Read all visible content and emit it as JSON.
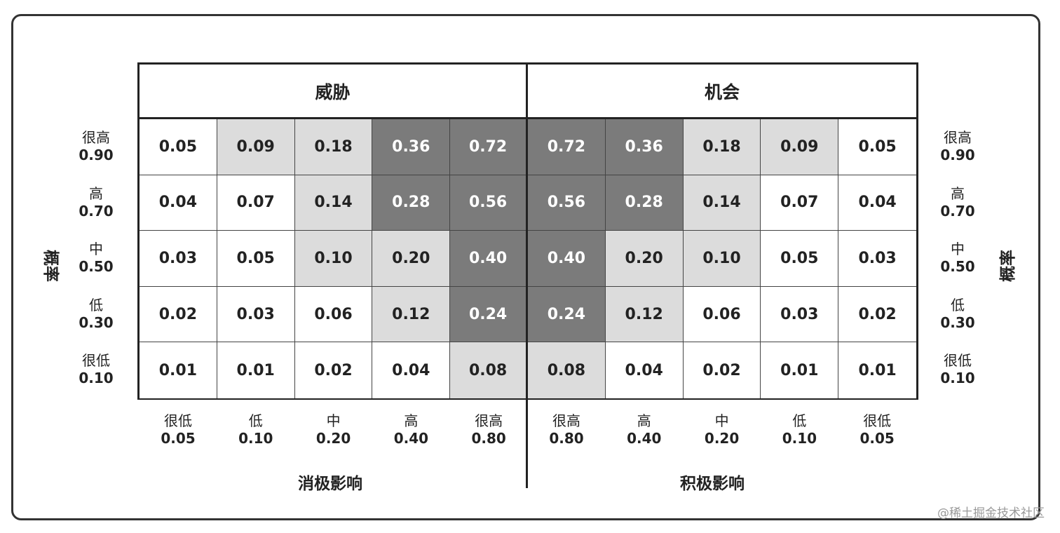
{
  "headers": {
    "threat": "威胁",
    "opportunity": "机会"
  },
  "probability_label": "概率",
  "probability_levels": [
    {
      "name": "很高",
      "value": "0.90"
    },
    {
      "name": "高",
      "value": "0.70"
    },
    {
      "name": "中",
      "value": "0.50"
    },
    {
      "name": "低",
      "value": "0.30"
    },
    {
      "name": "很低",
      "value": "0.10"
    }
  ],
  "impact_levels": [
    {
      "name": "很低",
      "value": "0.05"
    },
    {
      "name": "低",
      "value": "0.10"
    },
    {
      "name": "中",
      "value": "0.20"
    },
    {
      "name": "高",
      "value": "0.40"
    },
    {
      "name": "很高",
      "value": "0.80"
    },
    {
      "name": "很高",
      "value": "0.80"
    },
    {
      "name": "高",
      "value": "0.40"
    },
    {
      "name": "中",
      "value": "0.20"
    },
    {
      "name": "低",
      "value": "0.10"
    },
    {
      "name": "很低",
      "value": "0.05"
    }
  ],
  "axis_labels": {
    "negative": "消极影响",
    "positive": "积极影响"
  },
  "matrix": [
    [
      "0.05",
      "0.09",
      "0.18",
      "0.36",
      "0.72",
      "0.72",
      "0.36",
      "0.18",
      "0.09",
      "0.05"
    ],
    [
      "0.04",
      "0.07",
      "0.14",
      "0.28",
      "0.56",
      "0.56",
      "0.28",
      "0.14",
      "0.07",
      "0.04"
    ],
    [
      "0.03",
      "0.05",
      "0.10",
      "0.20",
      "0.40",
      "0.40",
      "0.20",
      "0.10",
      "0.05",
      "0.03"
    ],
    [
      "0.02",
      "0.03",
      "0.06",
      "0.12",
      "0.24",
      "0.24",
      "0.12",
      "0.06",
      "0.03",
      "0.02"
    ],
    [
      "0.01",
      "0.01",
      "0.02",
      "0.04",
      "0.08",
      "0.08",
      "0.04",
      "0.02",
      "0.01",
      "0.01"
    ]
  ],
  "shading": [
    [
      "w",
      "l",
      "l",
      "d",
      "d",
      "d",
      "d",
      "l",
      "l",
      "w"
    ],
    [
      "w",
      "w",
      "l",
      "d",
      "d",
      "d",
      "d",
      "l",
      "w",
      "w"
    ],
    [
      "w",
      "w",
      "l",
      "l",
      "d",
      "d",
      "l",
      "l",
      "w",
      "w"
    ],
    [
      "w",
      "w",
      "w",
      "l",
      "d",
      "d",
      "l",
      "w",
      "w",
      "w"
    ],
    [
      "w",
      "w",
      "w",
      "w",
      "l",
      "l",
      "w",
      "w",
      "w",
      "w"
    ]
  ],
  "colors": {
    "white": "#ffffff",
    "light": "#dcdcdc",
    "dark": "#7b7b7b"
  },
  "watermark": "@稀土掘金技术社区"
}
